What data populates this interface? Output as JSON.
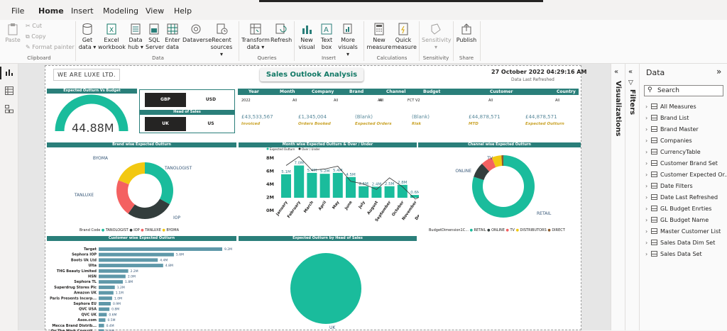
{
  "menu": {
    "file": "File",
    "home": "Home",
    "insert": "Insert",
    "modeling": "Modeling",
    "view": "View",
    "help": "Help"
  },
  "ribbon": {
    "clipboard": {
      "paste": "Paste",
      "cut": "Cut",
      "copy": "Copy",
      "format_painter": "Format painter",
      "group": "Clipboard"
    },
    "data": {
      "get_data": "Get data ▾",
      "excel": "Excel workbook",
      "data_hub": "Data hub ▾",
      "sql": "SQL Server",
      "enter": "Enter data",
      "dataverse": "Dataverse",
      "recent": "Recent sources ▾",
      "group": "Data"
    },
    "queries": {
      "transform": "Transform data ▾",
      "refresh": "Refresh",
      "group": "Queries"
    },
    "insert": {
      "new_visual": "New visual",
      "text_box": "Text box",
      "more_visuals": "More visuals ▾",
      "group": "Insert"
    },
    "calculations": {
      "new_measure": "New measure",
      "quick_measure": "Quick measure",
      "group": "Calculations"
    },
    "sensitivity": {
      "label": "Sensitivity ▾",
      "group": "Sensitivity"
    },
    "share": {
      "publish": "Publish",
      "group": "Share"
    }
  },
  "report": {
    "logo": "WE ARE LUXE LTD.",
    "title": "Sales Outlook Analysis",
    "datetime": "27 October 2022 04:29:16 AM",
    "datetime_label": "Data Last Refreshed",
    "gauge_header": "Expected Outturn Vs Budget",
    "gauge_value": "44.88M",
    "currency": {
      "gbp": "GBP",
      "usd": "USD"
    },
    "head_of_sales_header": "Head of Sales",
    "hos": {
      "uk": "UK",
      "us": "US"
    },
    "filters": {
      "year": {
        "label": "Year",
        "value": "2022"
      },
      "month": {
        "label": "Month",
        "value": "All"
      },
      "company": {
        "label": "Company",
        "value": "All"
      },
      "brand": {
        "label": "Brand",
        "value": "All"
      },
      "channel": {
        "label": "Channel",
        "value": "All"
      },
      "budget": {
        "label": "Budget",
        "value": "FCT V2"
      },
      "customer": {
        "label": "Customer",
        "value": "All"
      },
      "country": {
        "label": "Country",
        "value": "All"
      }
    },
    "kpis": [
      {
        "value": "£43,533,567",
        "label": "Invoiced"
      },
      {
        "value": "£1,345,004",
        "label": "Orders Booked"
      },
      {
        "value": "(Blank)",
        "label": "Expected Orders"
      },
      {
        "value": "(Blank)",
        "label": "Risk"
      },
      {
        "value": "£44,878,571",
        "label": "MTD"
      },
      {
        "value": "£44,878,571",
        "label": "Expected Outturn"
      }
    ],
    "brand_header": "Brand wise Expected Outturn",
    "month_header": "Month wise Expected Outturn & Over / Under",
    "channel_header": "Channel wise Expected Outturn",
    "customer_header": "Customer wise Expected Outturn",
    "hos_chart_header": "Expected Outturn by Head of Sales"
  },
  "chart_data": [
    {
      "type": "pie",
      "title": "Brand wise Expected Outturn",
      "legend_title": "Brand Code",
      "labels": [
        "TANOLOGIST",
        "IOP",
        "TANLUXE",
        "BYOMA"
      ],
      "values": [
        33,
        27,
        21,
        19
      ],
      "colors": [
        "#1abc9c",
        "#333d3c",
        "#f46161",
        "#f2c811"
      ]
    },
    {
      "type": "bar",
      "title": "Month wise Expected Outturn & Over / Under",
      "categories": [
        "January",
        "February",
        "March",
        "April",
        "May",
        "June",
        "July",
        "August",
        "September",
        "October",
        "November",
        "December"
      ],
      "series": [
        {
          "name": "Expected Outturn",
          "values": [
            5.1,
            7.0,
            5.4,
            5.2,
            5.4,
            4.5,
            2.5,
            2.4,
            2.5,
            2.8,
            0.6,
            0.2
          ]
        },
        {
          "name": "Over / Under",
          "type": "line",
          "values": [
            -1.5,
            -0.2,
            -2.2,
            -2.0,
            -1.6,
            -3.8,
            -4.2,
            -5.0,
            -3.3,
            -4.6,
            -6.4,
            -5.5
          ]
        }
      ],
      "labels": [
        "5.1M",
        "7.0M",
        "5.4M",
        "5.2M",
        "5.4M",
        "4.5M",
        "2.5M",
        "2.4M",
        "2.5M",
        "2.8M",
        "0.6M",
        "0.2M"
      ],
      "y_ticks": [
        "8M",
        "6M",
        "4M",
        "2M",
        "0M"
      ],
      "y2_ticks": [
        "0M",
        "-2M",
        "-4M",
        "-6M"
      ]
    },
    {
      "type": "pie",
      "title": "Channel wise Expected Outturn",
      "legend_title": "BudgetDimension1C...",
      "labels": [
        "RETAIL",
        "ONLINE",
        "TV",
        "DISTRIBUTORS",
        "DIRECT"
      ],
      "values": [
        80,
        8,
        6,
        5,
        1
      ],
      "colors": [
        "#1abc9c",
        "#333d3c",
        "#f46161",
        "#f2c811",
        "#8b5a2b"
      ]
    },
    {
      "type": "bar",
      "orientation": "horizontal",
      "title": "Customer wise Expected Outturn",
      "categories": [
        "Target",
        "Sephora IOP",
        "Boots Uk Ltd",
        "Ulta",
        "THG Beauty Limited",
        "HSN",
        "Sephora TL",
        "Superdrug Stores Plc",
        "Amazon UK",
        "Paris Presents Incorp...",
        "Sephora EU",
        "QVC USA",
        "QVC UK",
        "Asos.com",
        "Mecca Brand Distrib...",
        "On The Mark Consult..."
      ],
      "values": [
        9.2,
        5.6,
        4.4,
        4.8,
        2.2,
        2.0,
        1.8,
        1.2,
        1.1,
        1.0,
        0.9,
        0.8,
        0.6,
        0.5,
        0.4,
        0.4
      ],
      "labels": [
        "9.2M",
        "5.6M",
        "4.4M",
        "4.8M",
        "2.2M",
        "2.0M",
        "1.8M",
        "1.2M",
        "1.1M",
        "1.0M",
        "0.9M",
        "0.8M",
        "0.6M",
        "0.5M",
        "0.4M",
        "0.4M"
      ]
    },
    {
      "type": "pie",
      "title": "Expected Outturn by Head of Sales",
      "labels": [
        "UK"
      ],
      "values": [
        100
      ],
      "colors": [
        "#1abc9c"
      ]
    }
  ],
  "panes": {
    "visualizations": "Visualizations",
    "filters": "Filters",
    "data": "Data",
    "search_placeholder": "Search"
  },
  "data_fields": [
    "All Measures",
    "Brand List",
    "Brand Master",
    "Companies",
    "CurrencyTable",
    "Customer Brand Set",
    "Customer Expected Or...",
    "Date Filters",
    "Date Last Refreshed",
    "GL Budget Enrties",
    "GL Budget Name",
    "Master Customer List",
    "Sales Data Dim Set",
    "Sales Data Set"
  ]
}
